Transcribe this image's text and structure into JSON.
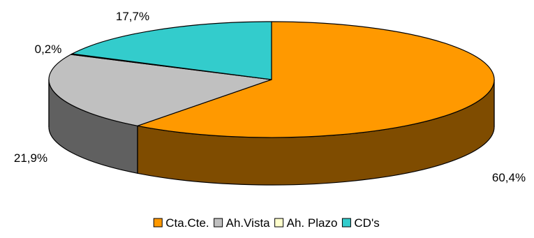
{
  "chart_data": {
    "type": "pie",
    "three_d": true,
    "categories": [
      "Cta.Cte.",
      "Ah.Vista",
      "Ah. Plazo",
      "CD's"
    ],
    "values": [
      60.4,
      21.9,
      0.2,
      17.7
    ],
    "data_labels": [
      "60,4%",
      "21,9%",
      "0,2%",
      "17,7%"
    ],
    "colors": {
      "top": [
        "#FF9900",
        "#C0C0C0",
        "#FFFFCC",
        "#33CCCC"
      ],
      "side": [
        "#7F4C00",
        "#606060",
        "#808066",
        "#1A6666"
      ]
    },
    "legend": {
      "position": "bottom",
      "entries": [
        "Cta.Cte.",
        "Ah.Vista",
        "Ah. Plazo",
        "CD's"
      ]
    },
    "title": ""
  }
}
